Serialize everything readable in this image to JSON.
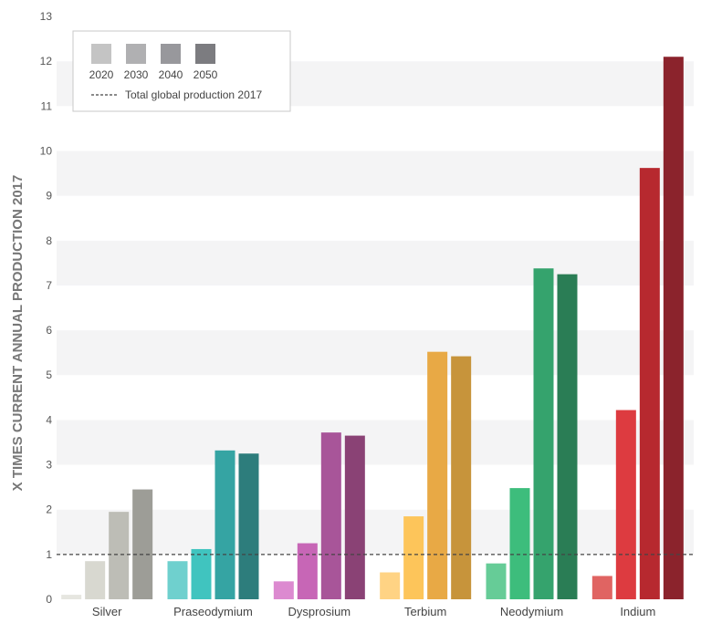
{
  "chart_data": {
    "type": "bar",
    "ylabel": "X TIMES CURRENT ANNUAL PRODUCTION 2017",
    "ylim": [
      0,
      13
    ],
    "yticks": [
      0,
      1,
      2,
      3,
      4,
      5,
      6,
      7,
      8,
      9,
      10,
      11,
      12,
      13
    ],
    "categories": [
      "Silver",
      "Praseodymium",
      "Dysprosium",
      "Terbium",
      "Neodymium",
      "Indium"
    ],
    "series": [
      {
        "name": "2020",
        "values": [
          0.1,
          0.85,
          0.4,
          0.6,
          0.8,
          0.52
        ]
      },
      {
        "name": "2030",
        "values": [
          0.85,
          1.12,
          1.25,
          1.85,
          2.48,
          4.22
        ]
      },
      {
        "name": "2040",
        "values": [
          1.95,
          3.32,
          3.72,
          5.52,
          7.38,
          9.62
        ]
      },
      {
        "name": "2050",
        "values": [
          2.45,
          3.25,
          3.65,
          5.42,
          7.25,
          12.1
        ]
      }
    ],
    "colors": {
      "Silver": [
        "#e6e6e0",
        "#d8d8d0",
        "#bdbdb6",
        "#9d9d97"
      ],
      "Praseodymium": [
        "#6fd0ce",
        "#40c4bf",
        "#35a4a3",
        "#2d7d7c"
      ],
      "Dysprosium": [
        "#dc8ad0",
        "#c766b6",
        "#a85599",
        "#8a4275"
      ],
      "Terbium": [
        "#ffd384",
        "#fdc55a",
        "#e8a945",
        "#c7943b"
      ],
      "Neodymium": [
        "#66cc97",
        "#3dbd7c",
        "#35a36d",
        "#2a7d55"
      ],
      "Indium": [
        "#e06462",
        "#dd3b40",
        "#b7292f",
        "#8b232c"
      ]
    },
    "reference_line": {
      "value": 1,
      "label": "Total global production 2017"
    },
    "legend": {
      "position": "top-left",
      "swatch_colors": [
        "#c4c4c4",
        "#b0b0b2",
        "#98989c",
        "#7c7c80"
      ]
    },
    "grid": "horizontal bands"
  }
}
